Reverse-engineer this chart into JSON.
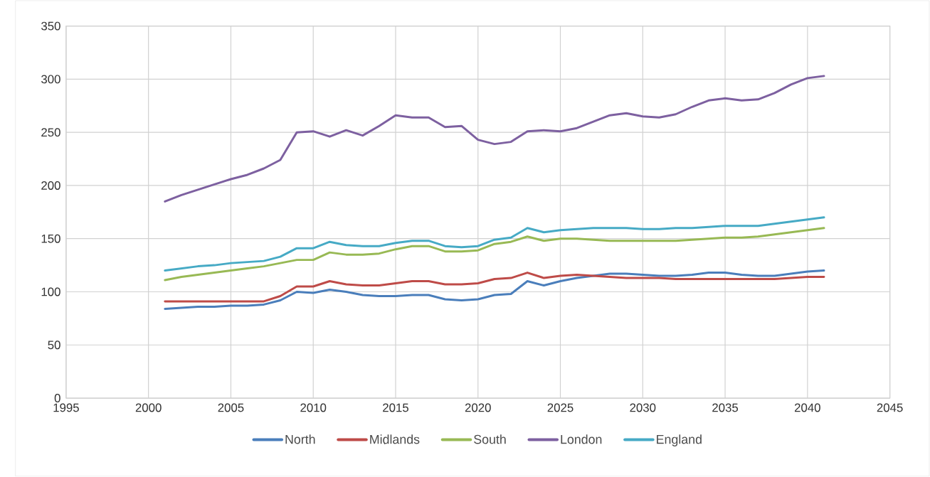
{
  "chart_data": {
    "type": "line",
    "x": [
      2001,
      2002,
      2003,
      2004,
      2005,
      2006,
      2007,
      2008,
      2009,
      2010,
      2011,
      2012,
      2013,
      2014,
      2015,
      2016,
      2017,
      2018,
      2019,
      2020,
      2021,
      2022,
      2023,
      2024,
      2025,
      2026,
      2027,
      2028,
      2029,
      2030,
      2031,
      2032,
      2033,
      2034,
      2035,
      2036,
      2037,
      2038,
      2039,
      2040,
      2041
    ],
    "xlim": [
      1995,
      2045
    ],
    "xticks": [
      1995,
      2000,
      2005,
      2010,
      2015,
      2020,
      2025,
      2030,
      2035,
      2040,
      2045
    ],
    "ylim": [
      0,
      350
    ],
    "yticks": [
      0,
      50,
      100,
      150,
      200,
      250,
      300,
      350
    ],
    "grid": true,
    "legend": "bottom",
    "marker": "none",
    "line_style": "solid",
    "series": [
      {
        "name": "North",
        "color": "#4a7ebb",
        "values": [
          84,
          85,
          86,
          86,
          87,
          87,
          88,
          92,
          100,
          99,
          102,
          100,
          97,
          96,
          96,
          97,
          97,
          93,
          92,
          93,
          97,
          98,
          110,
          106,
          110,
          113,
          115,
          117,
          117,
          116,
          115,
          115,
          116,
          118,
          118,
          116,
          115,
          115,
          117,
          119,
          120
        ]
      },
      {
        "name": "Midlands",
        "color": "#be4b48",
        "values": [
          91,
          91,
          91,
          91,
          91,
          91,
          91,
          96,
          105,
          105,
          110,
          107,
          106,
          106,
          108,
          110,
          110,
          107,
          107,
          108,
          112,
          113,
          118,
          113,
          115,
          116,
          115,
          114,
          113,
          113,
          113,
          112,
          112,
          112,
          112,
          112,
          112,
          112,
          113,
          114,
          114
        ]
      },
      {
        "name": "South",
        "color": "#98b954",
        "values": [
          111,
          114,
          116,
          118,
          120,
          122,
          124,
          127,
          130,
          130,
          137,
          135,
          135,
          136,
          140,
          143,
          143,
          138,
          138,
          139,
          145,
          147,
          152,
          148,
          150,
          150,
          149,
          148,
          148,
          148,
          148,
          148,
          149,
          150,
          151,
          151,
          152,
          154,
          156,
          158,
          160
        ]
      },
      {
        "name": "London",
        "color": "#7d60a0",
        "values": [
          185,
          191,
          196,
          201,
          206,
          210,
          216,
          224,
          250,
          251,
          246,
          252,
          247,
          256,
          266,
          264,
          264,
          255,
          256,
          243,
          239,
          241,
          251,
          252,
          251,
          254,
          260,
          266,
          268,
          265,
          264,
          267,
          274,
          280,
          282,
          280,
          281,
          287,
          295,
          301,
          303
        ]
      },
      {
        "name": "England",
        "color": "#46aac5",
        "values": [
          120,
          122,
          124,
          125,
          127,
          128,
          129,
          133,
          141,
          141,
          147,
          144,
          143,
          143,
          146,
          148,
          148,
          143,
          142,
          143,
          149,
          151,
          160,
          156,
          158,
          159,
          160,
          160,
          160,
          159,
          159,
          160,
          160,
          161,
          162,
          162,
          162,
          164,
          166,
          168,
          170
        ]
      }
    ]
  }
}
